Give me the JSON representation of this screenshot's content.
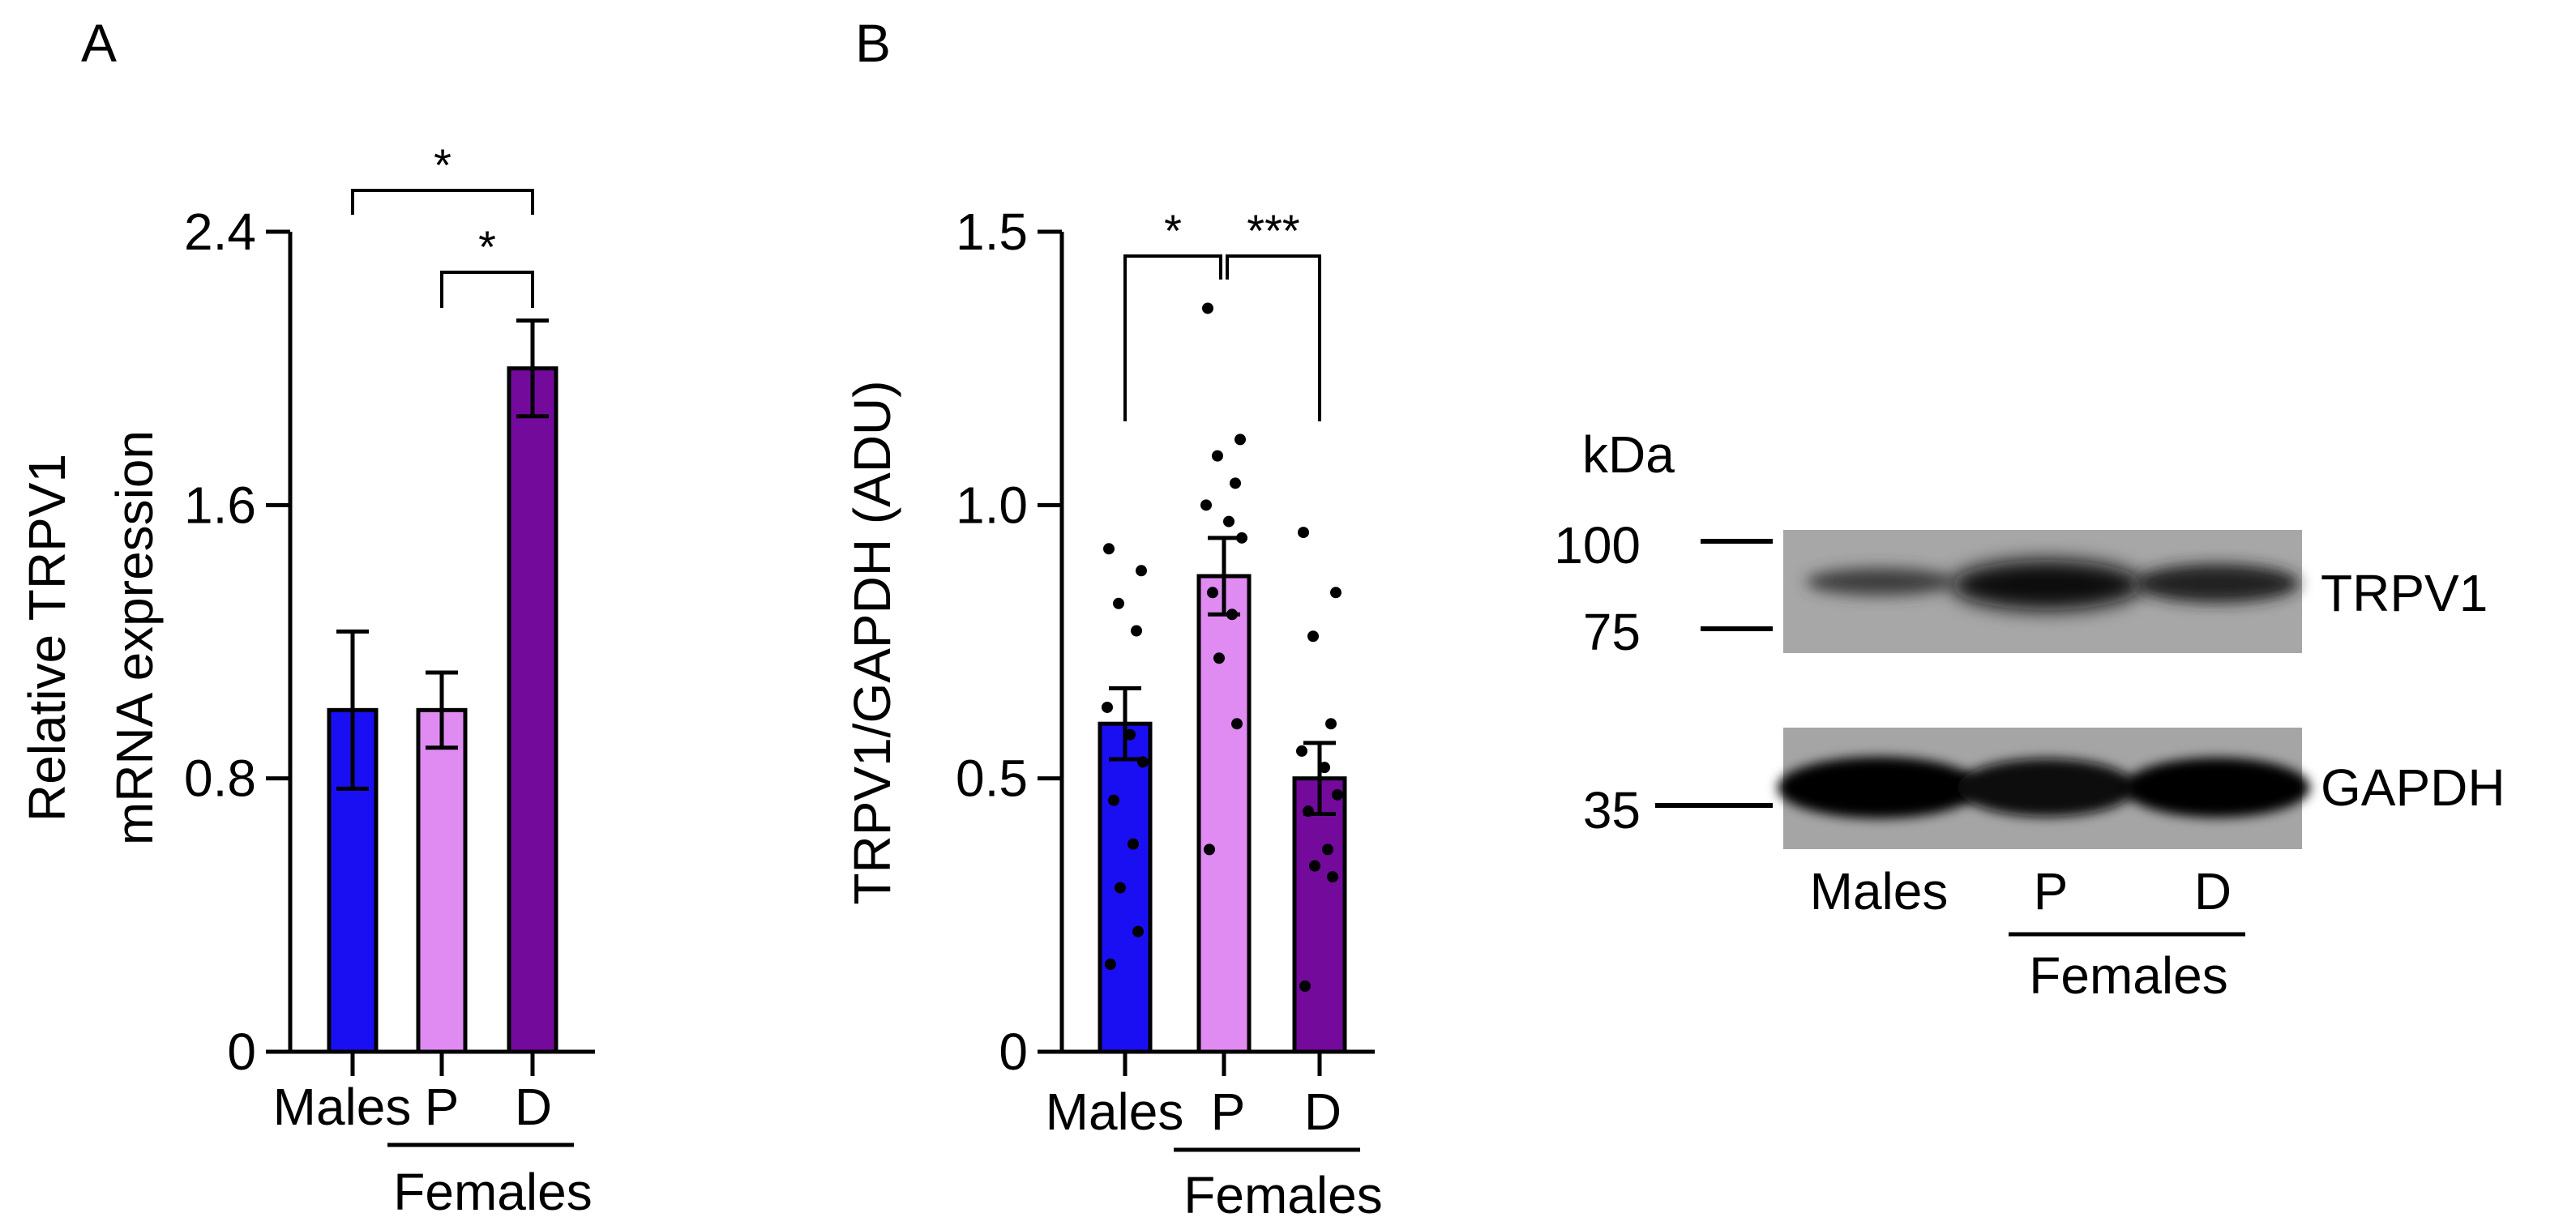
{
  "panels": {
    "a_label": "A",
    "b_label": "B"
  },
  "chart_data": [
    {
      "type": "bar",
      "panel": "A",
      "title": "",
      "ylabel_line1": "Relative TRPV1",
      "ylabel_line2": "mRNA expression",
      "ylim": [
        0,
        2.4
      ],
      "yticks": [
        0,
        0.8,
        1.6,
        2.4
      ],
      "ytick_labels": [
        "0",
        "0.8",
        "1.6",
        "2.4"
      ],
      "categories": [
        "Males",
        "P",
        "D"
      ],
      "group_label": "Females",
      "values": [
        1.0,
        1.0,
        2.0
      ],
      "errors": [
        0.23,
        0.11,
        0.14
      ],
      "colors": [
        "#1a0ff2",
        "#df8bf2",
        "#730a9c"
      ],
      "significance": [
        {
          "pair": [
            "Males",
            "D"
          ],
          "label": "*"
        },
        {
          "pair": [
            "P",
            "D"
          ],
          "label": "*"
        }
      ]
    },
    {
      "type": "bar",
      "panel": "B",
      "title": "",
      "ylabel": "TRPV1/GAPDH (ADU)",
      "ylim": [
        0,
        1.5
      ],
      "yticks": [
        0,
        0.5,
        1.0,
        1.5
      ],
      "ytick_labels": [
        "0",
        "0.5",
        "1.0",
        "1.5"
      ],
      "categories": [
        "Males",
        "P",
        "D"
      ],
      "group_label": "Females",
      "values": [
        0.6,
        0.87,
        0.5
      ],
      "errors": [
        0.065,
        0.07,
        0.065
      ],
      "colors": [
        "#1a0ff2",
        "#df8bf2",
        "#730a9c"
      ],
      "points": [
        [
          0.92,
          0.88,
          0.82,
          0.77,
          0.63,
          0.58,
          0.53,
          0.46,
          0.38,
          0.3,
          0.22,
          0.16
        ],
        [
          1.36,
          1.12,
          1.09,
          1.04,
          1.0,
          0.97,
          0.94,
          0.84,
          0.8,
          0.72,
          0.6,
          0.37
        ],
        [
          0.95,
          0.84,
          0.76,
          0.6,
          0.55,
          0.52,
          0.47,
          0.44,
          0.37,
          0.34,
          0.32,
          0.12
        ]
      ],
      "significance": [
        {
          "pair": [
            "Males",
            "P"
          ],
          "label": "*"
        },
        {
          "pair": [
            "P",
            "D"
          ],
          "label": "***"
        }
      ]
    }
  ],
  "blot": {
    "unit_label": "kDa",
    "markers": [
      "100",
      "75",
      "35"
    ],
    "bands": [
      "TRPV1",
      "GAPDH"
    ],
    "lanes": [
      "Males",
      "P",
      "D"
    ],
    "group_label": "Females"
  }
}
